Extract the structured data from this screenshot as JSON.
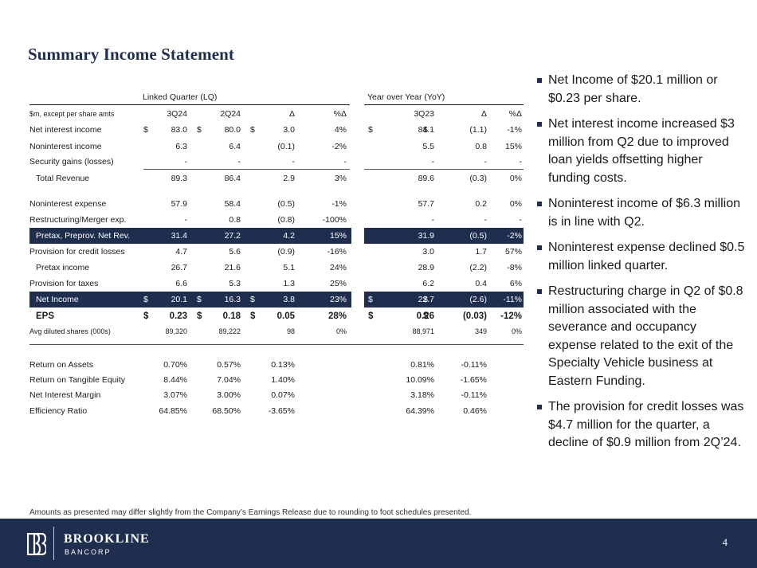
{
  "title": "Summary Income Statement",
  "groups": {
    "lq": "Linked Quarter (LQ)",
    "yoy": "Year over Year (YoY)"
  },
  "header": {
    "label": "$m, except per share amts",
    "c1": "3Q24",
    "c2": "2Q24",
    "c3": "Δ",
    "c4": "%Δ",
    "c5": "3Q23",
    "c6": "Δ",
    "c7": "%Δ"
  },
  "rows": [
    {
      "label": "Net interest income",
      "d1": "$",
      "c1": "83.0",
      "d2": "$",
      "c2": "80.0",
      "d3": "$",
      "c3": "3.0",
      "c4": "4%",
      "d5": "$",
      "c5": "84.1",
      "d6": "$",
      "c6": "(1.1)",
      "c7": "-1%"
    },
    {
      "label": "Noninterest income",
      "c1": "6.3",
      "c2": "6.4",
      "c3": "(0.1)",
      "c4": "-2%",
      "c5": "5.5",
      "c6": "0.8",
      "c7": "15%"
    },
    {
      "label": "Security gains (losses)",
      "c1": "-",
      "c2": "-",
      "c3": "-",
      "c4": "-",
      "c5": "-",
      "c6": "-",
      "c7": "-"
    },
    {
      "label": "Total Revenue",
      "c1": "89.3",
      "c2": "86.4",
      "c3": "2.9",
      "c4": "3%",
      "c5": "89.6",
      "c6": "(0.3)",
      "c7": "0%"
    },
    {
      "label": "Noninterest expense",
      "c1": "57.9",
      "c2": "58.4",
      "c3": "(0.5)",
      "c4": "-1%",
      "c5": "57.7",
      "c6": "0.2",
      "c7": "0%"
    },
    {
      "label": "Restructuring/Merger exp.",
      "c1": "-",
      "c2": "0.8",
      "c3": "(0.8)",
      "c4": "-100%",
      "c5": "-",
      "c6": "-",
      "c7": "-"
    },
    {
      "label": "Pretax, Preprov. Net Rev.",
      "c1": "31.4",
      "c2": "27.2",
      "c3": "4.2",
      "c4": "15%",
      "c5": "31.9",
      "c6": "(0.5)",
      "c7": "-2%"
    },
    {
      "label": "Provision for credit losses",
      "c1": "4.7",
      "c2": "5.6",
      "c3": "(0.9)",
      "c4": "-16%",
      "c5": "3.0",
      "c6": "1.7",
      "c7": "57%"
    },
    {
      "label": "Pretax income",
      "c1": "26.7",
      "c2": "21.6",
      "c3": "5.1",
      "c4": "24%",
      "c5": "28.9",
      "c6": "(2.2)",
      "c7": "-8%"
    },
    {
      "label": "Provision for taxes",
      "c1": "6.6",
      "c2": "5.3",
      "c3": "1.3",
      "c4": "25%",
      "c5": "6.2",
      "c6": "0.4",
      "c7": "6%"
    },
    {
      "label": "Net Income",
      "d1": "$",
      "c1": "20.1",
      "d2": "$",
      "c2": "16.3",
      "d3": "$",
      "c3": "3.8",
      "c4": "23%",
      "d5": "$",
      "c5": "22.7",
      "d6": "$",
      "c6": "(2.6)",
      "c7": "-11%"
    },
    {
      "label": "EPS",
      "d1": "$",
      "c1": "0.23",
      "d2": "$",
      "c2": "0.18",
      "d3": "$",
      "c3": "0.05",
      "c4": "28%",
      "d5": "$",
      "c5": "0.26",
      "d6": "$",
      "c6": "(0.03)",
      "c7": "-12%"
    },
    {
      "label": "Avg diluted shares (000s)",
      "c1": "89,320",
      "c2": "89,222",
      "c3": "98",
      "c4": "0%",
      "c5": "88,971",
      "c6": "349",
      "c7": "0%"
    },
    {
      "label": "Return on Assets",
      "c1": "0.70%",
      "c2": "0.57%",
      "c3": "0.13%",
      "c5": "0.81%",
      "c6": "-0.11%"
    },
    {
      "label": "Return on Tangible Equity",
      "c1": "8.44%",
      "c2": "7.04%",
      "c3": "1.40%",
      "c5": "10.09%",
      "c6": "-1.65%"
    },
    {
      "label": "Net Interest Margin",
      "c1": "3.07%",
      "c2": "3.00%",
      "c3": "0.07%",
      "c5": "3.18%",
      "c6": "-0.11%"
    },
    {
      "label": "Efficiency Ratio",
      "c1": "64.85%",
      "c2": "68.50%",
      "c3": "-3.65%",
      "c5": "64.39%",
      "c6": "0.46%"
    }
  ],
  "bullets": [
    "Net Income of $20.1 million or $0.23 per share.",
    "Net interest income increased $3 million from Q2 due to improved loan yields offsetting higher funding costs.",
    "Noninterest income of $6.3 million is in line with Q2.",
    "Noninterest expense declined $0.5 million linked quarter.",
    "Restructuring charge in Q2 of $0.8 million associated with the severance and occupancy expense related to the exit of the Specialty Vehicle business at Eastern Funding.",
    "The provision for credit losses was $4.7 million for the quarter, a decline of $0.9 million from 2Q’24."
  ],
  "footnote": "Amounts as presented may differ slightly from the Company’s Earnings Release due to rounding to foot schedules presented.",
  "footer": {
    "brand_line1": "BROOKLINE",
    "brand_line2": "BANCORP",
    "page_number": "4"
  },
  "colors": {
    "navy": "#1f2d4f",
    "text": "#1a1a1a"
  }
}
